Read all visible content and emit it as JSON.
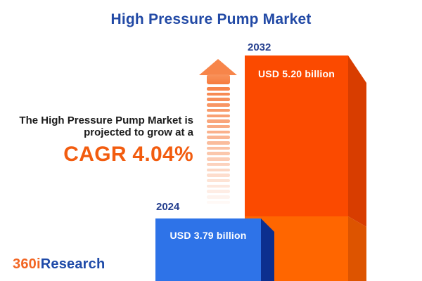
{
  "title": "High Pressure Pump Market",
  "annotation": {
    "line1": "The High Pressure Pump Market is",
    "line2": "projected to grow at a",
    "cagr_label": "CAGR 4.04%",
    "cagr_percent": 4.04
  },
  "logo": {
    "part_orange": "360i",
    "part_blue": "Research"
  },
  "colors": {
    "title_blue": "#2149A5",
    "year_label_blue": "#26408F",
    "cagr_orange": "#F25C0F",
    "arrow_orange": "#F67B3D",
    "bar_2024_front": "#2E73E8",
    "bar_2024_side": "#0C2F8F",
    "bar_2032_front_top": "#FB4A00",
    "bar_2032_side_top": "#D83D00",
    "bar_2032_front_bottom": "#FF6600",
    "bar_2032_side_bottom": "#DD5400",
    "background": "#FFFFFF"
  },
  "chart_data": {
    "type": "bar",
    "title": "High Pressure Pump Market",
    "categories": [
      "2024",
      "2032"
    ],
    "values": [
      3.79,
      5.2
    ],
    "value_labels": [
      "USD 3.79 billion",
      "USD 5.20 billion"
    ],
    "unit": "USD billion",
    "cagr_percent": 4.04,
    "series_colors": [
      "#2E73E8",
      "#FB4A00"
    ],
    "legend": false,
    "grid": false,
    "style_notes": "3D pseudo-perspective bars; 2032 bar shows 2024 baseline portion in lighter orange; dashed fading arrow indicates growth"
  }
}
